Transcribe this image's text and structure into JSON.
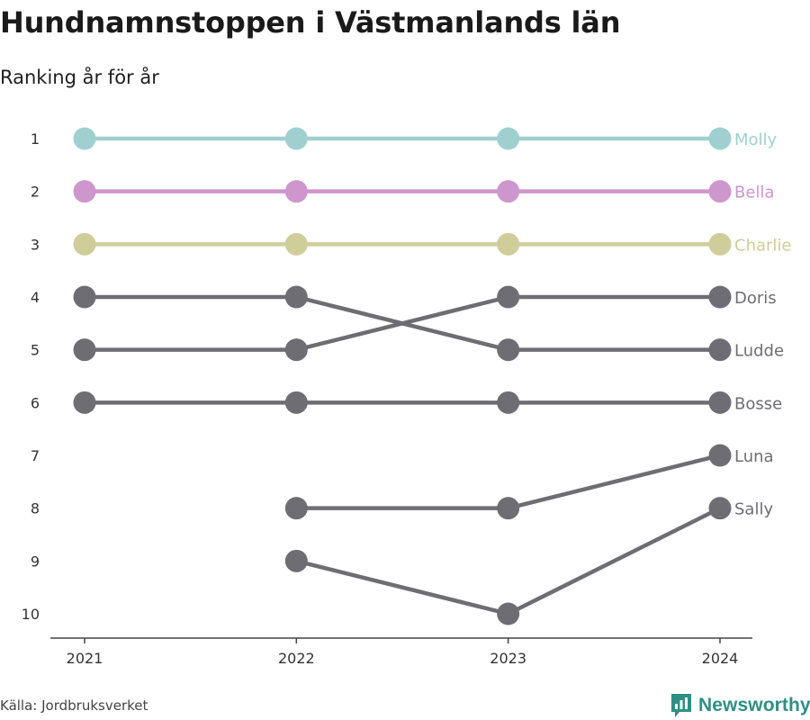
{
  "title": "Hundnamnstoppen i Västmanlands län",
  "subtitle": "Ranking år för år",
  "source": "Källa: Jordbruksverket",
  "logo_text": "Newsworthy",
  "chart_data": {
    "type": "line",
    "chart_kind": "bump",
    "x": [
      "2021",
      "2022",
      "2023",
      "2024"
    ],
    "y_ticks": [
      1,
      2,
      3,
      4,
      5,
      6,
      7,
      8,
      9,
      10
    ],
    "ylim": [
      1,
      10
    ],
    "y_reversed": true,
    "grid": false,
    "legend": "direct labels at line ends (right)",
    "axis_color": "#444444",
    "default_color": "#6e6d73",
    "series": [
      {
        "name": "Molly",
        "values": [
          1,
          1,
          1,
          1
        ],
        "color": "#9fd0cf"
      },
      {
        "name": "Bella",
        "values": [
          2,
          2,
          2,
          2
        ],
        "color": "#cd96cc"
      },
      {
        "name": "Charlie",
        "values": [
          3,
          3,
          3,
          3
        ],
        "color": "#cfcd99"
      },
      {
        "name": "Doris",
        "values": [
          5,
          5,
          4,
          4
        ],
        "color": "#6e6d73"
      },
      {
        "name": "Ludde",
        "values": [
          4,
          4,
          5,
          5
        ],
        "color": "#6e6d73"
      },
      {
        "name": "Bosse",
        "values": [
          6,
          6,
          6,
          6
        ],
        "color": "#6e6d73"
      },
      {
        "name": "Luna",
        "values": [
          null,
          8,
          8,
          7
        ],
        "color": "#6e6d73"
      },
      {
        "name": "Sally",
        "values": [
          null,
          9,
          10,
          8
        ],
        "color": "#6e6d73"
      }
    ]
  }
}
